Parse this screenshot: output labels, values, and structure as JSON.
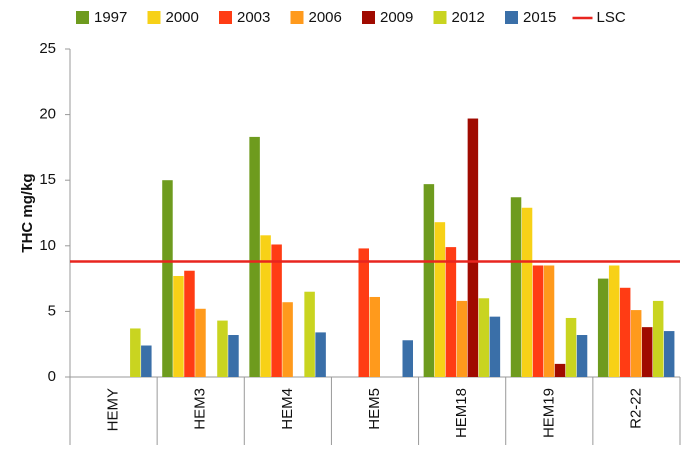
{
  "chart_data": {
    "type": "bar",
    "y_label": "THC mg/kg",
    "categories": [
      "HEMY",
      "HEM3",
      "HEM4",
      "HEM5",
      "HEM18",
      "HEM19",
      "R2-22"
    ],
    "series": [
      {
        "name": "1997",
        "color": "#6e9b1e",
        "values": [
          null,
          15.0,
          18.3,
          null,
          14.7,
          13.7,
          7.5
        ]
      },
      {
        "name": "2000",
        "color": "#f7d117",
        "values": [
          null,
          7.7,
          10.8,
          null,
          11.8,
          12.9,
          8.5
        ]
      },
      {
        "name": "2003",
        "color": "#ff3c14",
        "values": [
          null,
          8.1,
          10.1,
          9.8,
          9.9,
          8.5,
          6.8
        ]
      },
      {
        "name": "2006",
        "color": "#ff9a1c",
        "values": [
          null,
          5.2,
          5.7,
          6.1,
          5.8,
          8.5,
          5.1
        ]
      },
      {
        "name": "2009",
        "color": "#a00a00",
        "values": [
          null,
          null,
          null,
          null,
          19.7,
          1.0,
          3.8
        ]
      },
      {
        "name": "2012",
        "color": "#c9d420",
        "values": [
          3.7,
          4.3,
          6.5,
          null,
          6.0,
          4.5,
          5.8
        ]
      },
      {
        "name": "2015",
        "color": "#3a6fa8",
        "values": [
          2.4,
          3.2,
          3.4,
          2.8,
          4.6,
          3.2,
          3.5
        ]
      }
    ],
    "reference_line": {
      "name": "LSC",
      "color": "#e8251f",
      "value": 8.8
    },
    "ylim": [
      0,
      25
    ],
    "yticks": [
      0,
      5,
      10,
      15,
      20,
      25
    ],
    "grid": false
  }
}
